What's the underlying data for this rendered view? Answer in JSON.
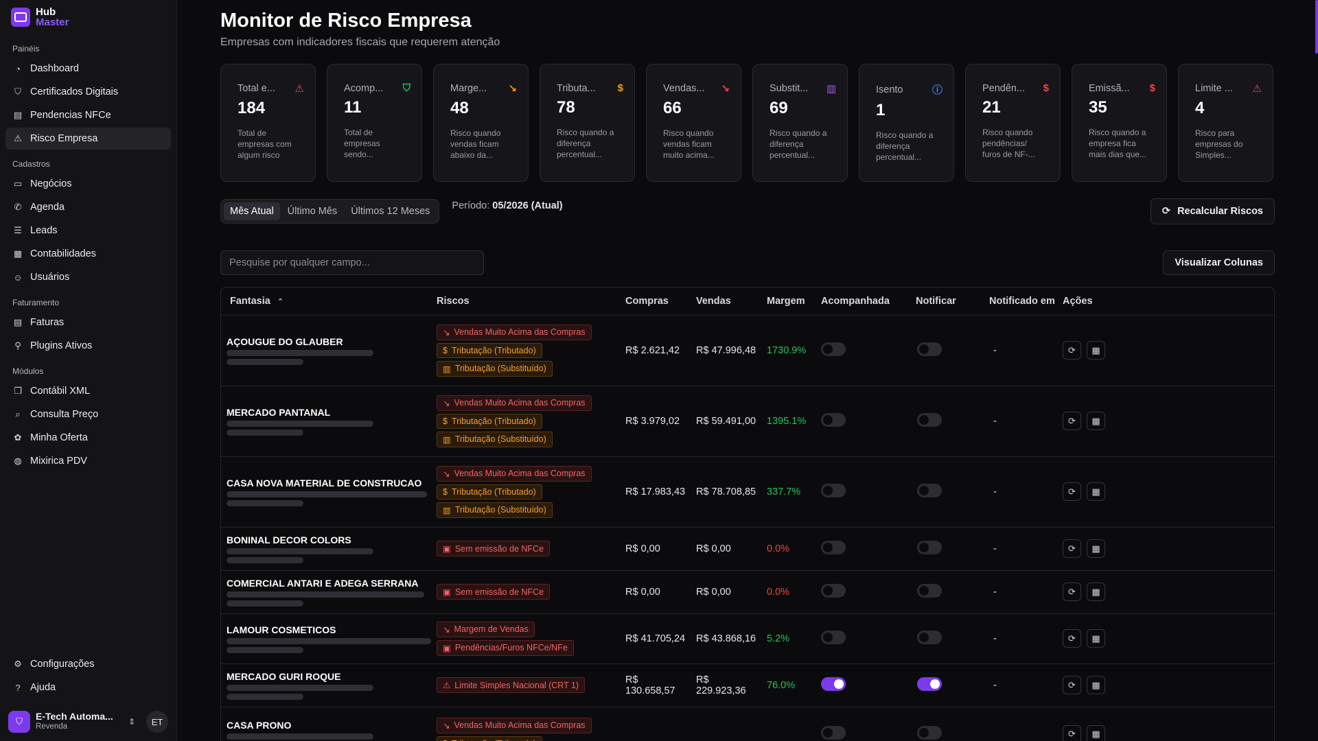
{
  "app": {
    "logo_line1": "Hub",
    "logo_line2": "Master"
  },
  "sidebar": {
    "groups": [
      {
        "title": "Painéis",
        "items": [
          {
            "label": "Dashboard",
            "icon": "gauge-icon"
          },
          {
            "label": "Certificados Digitais",
            "icon": "shield-icon"
          },
          {
            "label": "Pendencias NFCe",
            "icon": "receipt-icon"
          },
          {
            "label": "Risco Empresa",
            "icon": "warning-icon",
            "active": true
          }
        ]
      },
      {
        "title": "Cadastros",
        "items": [
          {
            "label": "Negócios",
            "icon": "briefcase-icon"
          },
          {
            "label": "Agenda",
            "icon": "phone-icon"
          },
          {
            "label": "Leads",
            "icon": "list-icon"
          },
          {
            "label": "Contabilidades",
            "icon": "calculator-icon"
          },
          {
            "label": "Usuários",
            "icon": "users-icon"
          }
        ]
      },
      {
        "title": "Faturamento",
        "items": [
          {
            "label": "Faturas",
            "icon": "invoice-icon"
          },
          {
            "label": "Plugins Ativos",
            "icon": "plug-icon"
          }
        ]
      },
      {
        "title": "Módulos",
        "items": [
          {
            "label": "Contábil XML",
            "icon": "file-code-icon"
          },
          {
            "label": "Consulta Preço",
            "icon": "search-icon"
          },
          {
            "label": "Minha Oferta",
            "icon": "badge-percent-icon"
          },
          {
            "label": "Mixirica PDV",
            "icon": "fruit-icon"
          }
        ]
      }
    ],
    "bottom_items": [
      {
        "label": "Configurações",
        "icon": "gear-icon"
      },
      {
        "label": "Ajuda",
        "icon": "help-icon"
      }
    ],
    "user": {
      "name": "E-Tech Automa...",
      "role": "Revenda",
      "initials": "ET"
    }
  },
  "header": {
    "title": "Monitor de Risco Empresa",
    "subtitle": "Empresas com indicadores fiscais que requerem atenção"
  },
  "cards": [
    {
      "label": "Total e...",
      "value": "184",
      "desc1": "Total de",
      "desc2": "empresas com",
      "desc3": "algum risco",
      "icon": "warning-icon",
      "color": "#ef4444",
      "glyph": "⚠"
    },
    {
      "label": "Acomp...",
      "value": "11",
      "desc1": "Total de",
      "desc2": "empresas",
      "desc3": "sendo...",
      "icon": "shield-check-icon",
      "color": "#22c55e",
      "glyph": "⛉"
    },
    {
      "label": "Marge...",
      "value": "48",
      "desc1": "Risco quando",
      "desc2": "vendas ficam",
      "desc3": "abaixo da...",
      "icon": "trend-down-icon",
      "color": "#f59e0b",
      "glyph": "↘"
    },
    {
      "label": "Tributa...",
      "value": "78",
      "desc1": "Risco quando a",
      "desc2": "diferença",
      "desc3": "percentual...",
      "icon": "dollar-icon",
      "color": "#f59e0b",
      "glyph": "$"
    },
    {
      "label": "Vendas...",
      "value": "66",
      "desc1": "Risco quando",
      "desc2": "vendas ficam",
      "desc3": "muito acima...",
      "icon": "trend-down-icon",
      "color": "#ef4444",
      "glyph": "↘"
    },
    {
      "label": "Substit...",
      "value": "69",
      "desc1": "Risco quando a",
      "desc2": "diferença",
      "desc3": "percentual...",
      "icon": "bar-chart-icon",
      "color": "#a855f7",
      "glyph": "▥"
    },
    {
      "label": "Isento",
      "value": "1",
      "desc1": "Risco quando a",
      "desc2": "diferença",
      "desc3": "percentual...",
      "icon": "info-file-icon",
      "color": "#3b82f6",
      "glyph": "ⓘ"
    },
    {
      "label": "Pendên...",
      "value": "21",
      "desc1": "Risco quando",
      "desc2": "pendências/",
      "desc3": "furos de NF-...",
      "icon": "receipt-icon",
      "color": "#ef4444",
      "glyph": "$"
    },
    {
      "label": "Emissã...",
      "value": "35",
      "desc1": "Risco quando a",
      "desc2": "empresa fica",
      "desc3": "mais dias que...",
      "icon": "receipt-icon",
      "color": "#ef4444",
      "glyph": "$"
    },
    {
      "label": "Limite ...",
      "value": "4",
      "desc1": "Risco para",
      "desc2": "empresas do",
      "desc3": "Simples...",
      "icon": "warning-icon",
      "color": "#ef4444",
      "glyph": "⚠"
    }
  ],
  "tabs": [
    {
      "label": "Mês Atual",
      "active": true
    },
    {
      "label": "Último Mês"
    },
    {
      "label": "Últimos 12 Meses"
    }
  ],
  "periodo": {
    "label": "Período:",
    "value": "05/2026 (Atual)"
  },
  "recalc_label": "Recalcular Riscos",
  "search_placeholder": "Pesquise por qualquer campo...",
  "columns_label": "Visualizar Colunas",
  "table": {
    "headers": [
      "Fantasia",
      "Riscos",
      "Compras",
      "Vendas",
      "Margem",
      "Acompanhada",
      "Notificar",
      "Notificado em",
      "Ações"
    ],
    "rows": [
      {
        "name": "AÇOUGUE DO GLAUBER",
        "bar": 214,
        "badges": [
          {
            "text": "Vendas Muito Acima das Compras",
            "kind": "danger",
            "glyph": "↘"
          },
          {
            "text": "Tributação (Tributado)",
            "kind": "warn",
            "glyph": "$"
          },
          {
            "text": "Tributação (Substituído)",
            "kind": "warn",
            "glyph": "▥"
          }
        ],
        "compras": "R$ 2.621,42",
        "vendas": "R$ 47.996,48",
        "margem": "1730.9%",
        "margem_kind": "pos",
        "acomp": false,
        "notif": false,
        "notificado": "-",
        "h": 103
      },
      {
        "name": "MERCADO PANTANAL",
        "bar": 214,
        "badges": [
          {
            "text": "Vendas Muito Acima das Compras",
            "kind": "danger",
            "glyph": "↘"
          },
          {
            "text": "Tributação (Tributado)",
            "kind": "warn",
            "glyph": "$"
          },
          {
            "text": "Tributação (Substituído)",
            "kind": "warn",
            "glyph": "▥"
          }
        ],
        "compras": "R$ 3.979,02",
        "vendas": "R$ 59.491,00",
        "margem": "1395.1%",
        "margem_kind": "pos",
        "acomp": false,
        "notif": false,
        "notificado": "-",
        "h": 103
      },
      {
        "name": "CASA NOVA MATERIAL DE CONSTRUCAO",
        "bar": 292,
        "badges": [
          {
            "text": "Vendas Muito Acima das Compras",
            "kind": "danger",
            "glyph": "↘"
          },
          {
            "text": "Tributação (Tributado)",
            "kind": "warn",
            "glyph": "$"
          },
          {
            "text": "Tributação (Substituído)",
            "kind": "warn",
            "glyph": "▥"
          }
        ],
        "compras": "R$ 17.983,43",
        "vendas": "R$ 78.708,85",
        "margem": "337.7%",
        "margem_kind": "pos",
        "acomp": false,
        "notif": false,
        "notificado": "-",
        "h": 103
      },
      {
        "name": "BONINAL DECOR COLORS",
        "bar": 214,
        "badges": [
          {
            "text": "Sem emissão de NFCe",
            "kind": "danger",
            "glyph": "▣"
          }
        ],
        "compras": "R$ 0,00",
        "vendas": "R$ 0,00",
        "margem": "0.0%",
        "margem_kind": "neg",
        "acomp": false,
        "notif": false,
        "notificado": "-",
        "h": 63
      },
      {
        "name": "COMERCIAL ANTARI E ADEGA SERRANA",
        "bar": 288,
        "badges": [
          {
            "text": "Sem emissão de NFCe",
            "kind": "danger",
            "glyph": "▣"
          }
        ],
        "compras": "R$ 0,00",
        "vendas": "R$ 0,00",
        "margem": "0.0%",
        "margem_kind": "neg",
        "acomp": false,
        "notif": false,
        "notificado": "-",
        "h": 63
      },
      {
        "name": "LAMOUR COSMETICOS",
        "bar": 298,
        "badges": [
          {
            "text": "Margem de Vendas",
            "kind": "danger",
            "glyph": "↘"
          },
          {
            "text": "Pendências/Furos NFCe/NFe",
            "kind": "danger",
            "glyph": "▣"
          }
        ],
        "compras": "R$ 41.705,24",
        "vendas": "R$ 43.868,16",
        "margem": "5.2%",
        "margem_kind": "pos",
        "acomp": false,
        "notif": false,
        "notificado": "-",
        "h": 73
      },
      {
        "name": "MERCADO GURI ROQUE",
        "bar": 214,
        "badges": [
          {
            "text": "Limite Simples Nacional (CRT 1)",
            "kind": "danger",
            "glyph": "⚠"
          }
        ],
        "compras": "R$ 130.658,57",
        "vendas": "R$ 229.923,36",
        "margem": "76.0%",
        "margem_kind": "pos",
        "acomp": true,
        "notif": true,
        "notificado": "-",
        "h": 63
      },
      {
        "name": "CASA PRONO",
        "bar": 214,
        "badges": [
          {
            "text": "Vendas Muito Acima das Compras",
            "kind": "danger",
            "glyph": "↘"
          },
          {
            "text": "Tributação (Tributado)",
            "kind": "warn",
            "glyph": "$"
          }
        ],
        "compras": "",
        "vendas": "",
        "margem": "",
        "margem_kind": "pos",
        "acomp": false,
        "notif": false,
        "notificado": "",
        "h": 80
      }
    ]
  }
}
